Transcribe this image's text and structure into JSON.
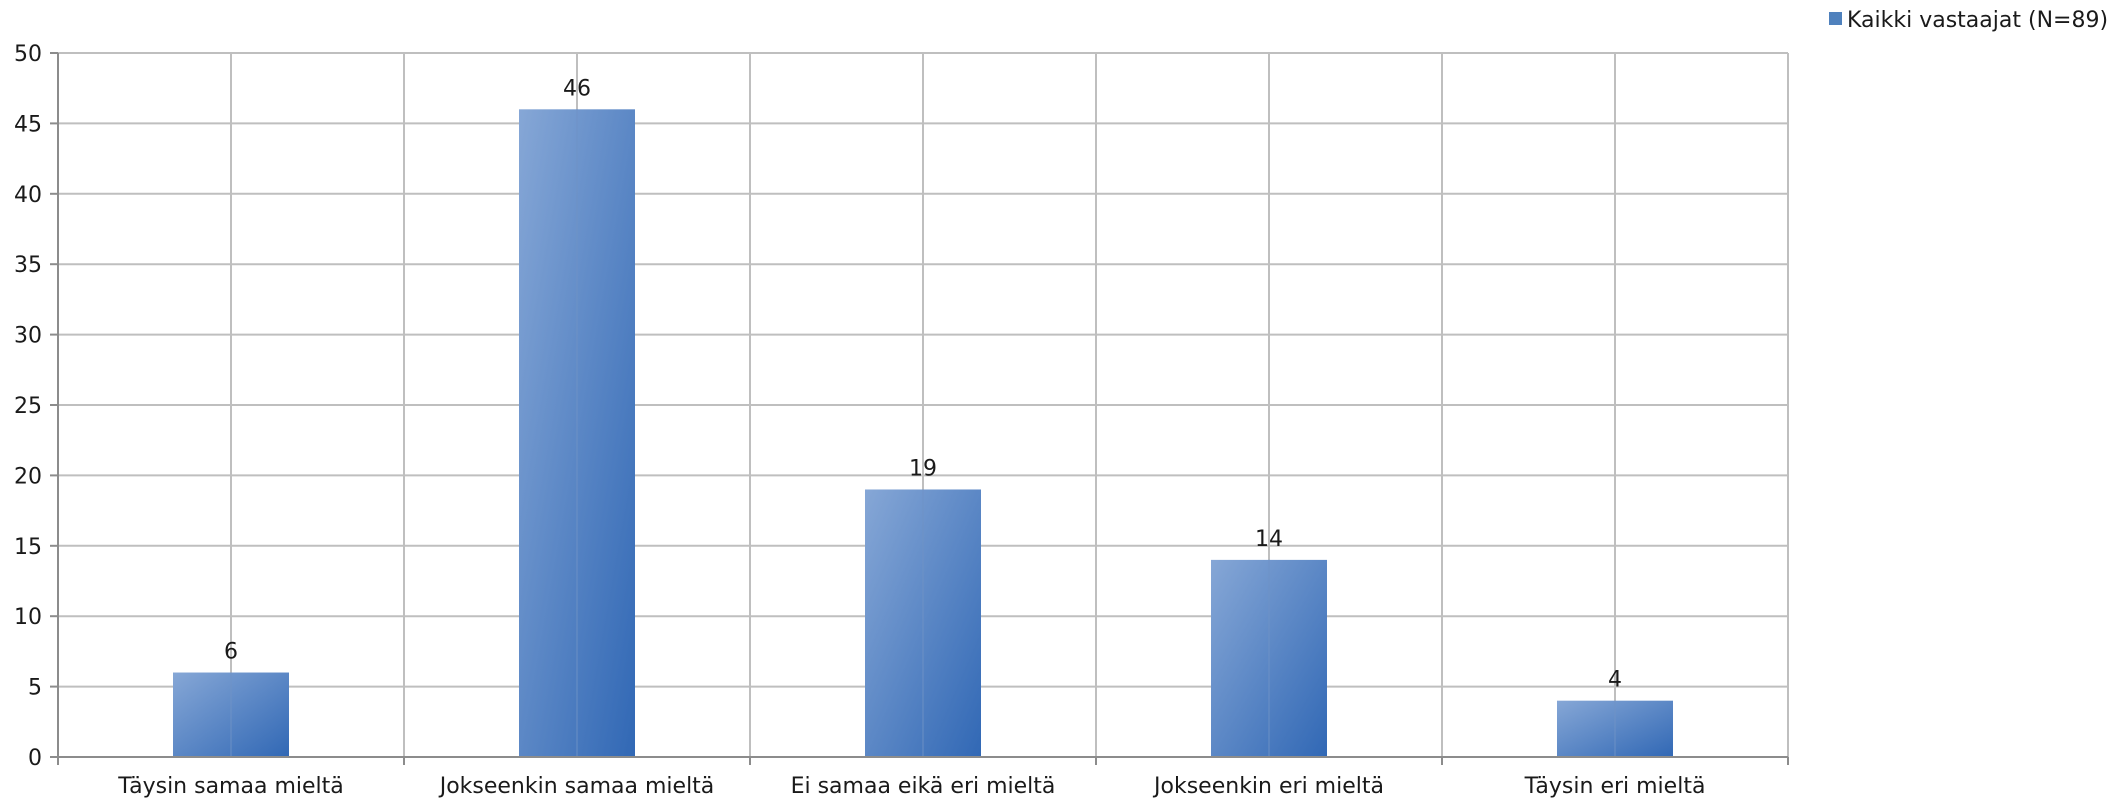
{
  "chart_data": {
    "type": "bar",
    "categories": [
      "Täysin samaa mieltä",
      "Jokseenkin samaa mieltä",
      "Ei samaa eikä eri mieltä",
      "Jokseenkin eri mieltä",
      "Täysin eri mieltä"
    ],
    "series": [
      {
        "name": "Kaikki vastaajat (N=89)",
        "values": [
          6,
          46,
          19,
          14,
          4
        ],
        "color": "#4f81bd"
      }
    ],
    "ylim": [
      0,
      50
    ],
    "yticks": [
      0,
      5,
      10,
      15,
      20,
      25,
      30,
      35,
      40,
      45,
      50
    ],
    "grid": true,
    "legend_position": "top-right",
    "data_labels": true
  }
}
